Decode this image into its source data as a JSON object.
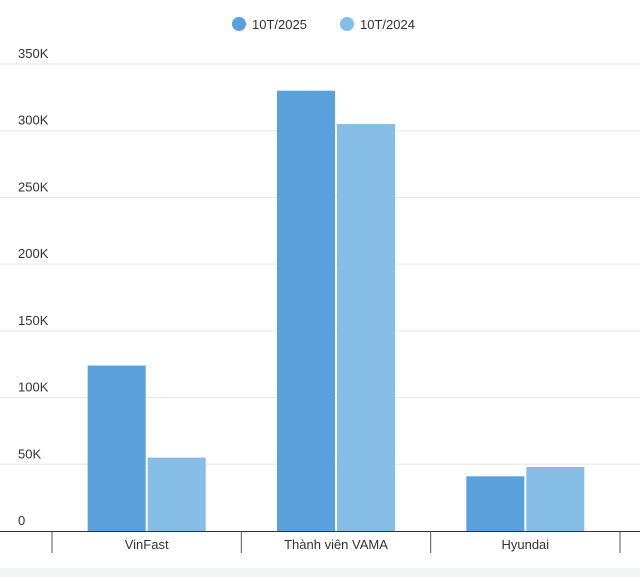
{
  "chart_data": {
    "type": "bar",
    "categories": [
      "VinFast",
      "Thành viên VAMA",
      "Hyundai"
    ],
    "series": [
      {
        "name": "10T/2025",
        "values": [
          124000,
          330000,
          41000
        ],
        "color": "#5aa0db"
      },
      {
        "name": "10T/2024",
        "values": [
          55000,
          305000,
          48000
        ],
        "color": "#86bde6"
      }
    ],
    "yticks": [
      0,
      50000,
      100000,
      150000,
      200000,
      250000,
      300000,
      350000
    ],
    "ytick_labels": [
      "0",
      "50K",
      "100K",
      "150K",
      "200K",
      "250K",
      "300K",
      "350K"
    ],
    "ylim": [
      0,
      350000
    ],
    "grid": true,
    "legend_position": "top-center"
  }
}
